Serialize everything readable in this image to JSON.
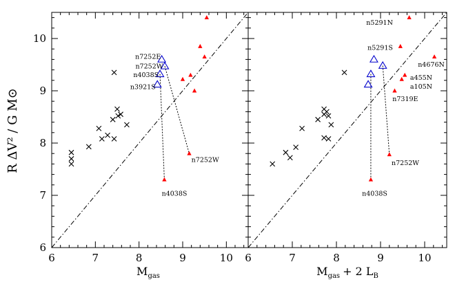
{
  "chart_data": [
    {
      "type": "scatter",
      "panel": "left",
      "title": "",
      "xlabel": "M",
      "xlabel_sub": "gas",
      "xlabel_tail": "",
      "ylabel": "R ΔV² / G M⊙",
      "xlim": [
        6,
        10.5
      ],
      "ylim": [
        6,
        10.5
      ],
      "x_ticks": [
        "6",
        "7",
        "8",
        "9",
        "10"
      ],
      "y_ticks": [
        "6",
        "7",
        "8",
        "9",
        "10"
      ],
      "diagonal": [
        [
          6,
          6
        ],
        [
          10.5,
          10.5
        ]
      ],
      "series": [
        {
          "marker": "x",
          "color": "#000000",
          "points": [
            [
              6.45,
              7.82
            ],
            [
              6.45,
              7.7
            ],
            [
              6.45,
              7.6
            ],
            [
              6.85,
              7.93
            ],
            [
              7.08,
              8.28
            ],
            [
              7.15,
              8.08
            ],
            [
              7.28,
              8.15
            ],
            [
              7.4,
              8.45
            ],
            [
              7.43,
              8.08
            ],
            [
              7.5,
              8.65
            ],
            [
              7.52,
              8.52
            ],
            [
              7.58,
              8.55
            ],
            [
              7.72,
              8.35
            ],
            [
              7.43,
              9.35
            ]
          ]
        },
        {
          "marker": "open-triangle",
          "color": "#0000cc",
          "points": [
            [
              8.52,
              9.6
            ],
            [
              8.59,
              9.47
            ],
            [
              8.48,
              9.32
            ],
            [
              8.42,
              9.12
            ]
          ]
        },
        {
          "marker": "filled-triangle",
          "color": "#ff0000",
          "points": [
            [
              9.55,
              10.4
            ],
            [
              9.4,
              9.85
            ],
            [
              9.5,
              9.65
            ],
            [
              9.18,
              9.3
            ],
            [
              9.0,
              9.22
            ],
            [
              9.27,
              9.0
            ],
            [
              9.15,
              7.8
            ],
            [
              8.58,
              7.3
            ]
          ]
        }
      ],
      "connectors": [
        [
          [
            8.59,
            9.47
          ],
          [
            9.15,
            7.8
          ]
        ],
        [
          [
            8.48,
            9.32
          ],
          [
            8.58,
            7.3
          ]
        ]
      ],
      "annotations": [
        {
          "text": "n7252E",
          "x": 8.5,
          "y": 9.65,
          "anchor": "end"
        },
        {
          "text": "n7252W",
          "x": 8.55,
          "y": 9.47,
          "anchor": "end"
        },
        {
          "text": "n4038S",
          "x": 8.45,
          "y": 9.3,
          "anchor": "end"
        },
        {
          "text": "n3921S",
          "x": 8.38,
          "y": 9.07,
          "anchor": "end"
        },
        {
          "text": "n7252W",
          "x": 9.2,
          "y": 7.68,
          "anchor": "start"
        },
        {
          "text": "n4038S",
          "x": 8.52,
          "y": 7.03,
          "anchor": "start"
        }
      ]
    },
    {
      "type": "scatter",
      "panel": "right",
      "title": "",
      "xlabel": "M",
      "xlabel_sub": "gas",
      "xlabel_tail": "+ 2 L",
      "xlabel_tail_sub": "B",
      "xlim": [
        6,
        10.5
      ],
      "ylim": [
        6,
        10.5
      ],
      "x_ticks": [
        "6",
        "7",
        "8",
        "9",
        "10"
      ],
      "diagonal": [
        [
          6,
          6
        ],
        [
          10.5,
          10.5
        ]
      ],
      "series": [
        {
          "marker": "x",
          "color": "#000000",
          "points": [
            [
              6.55,
              7.6
            ],
            [
              6.85,
              7.82
            ],
            [
              6.95,
              7.72
            ],
            [
              7.08,
              7.92
            ],
            [
              7.22,
              8.28
            ],
            [
              7.58,
              8.45
            ],
            [
              7.72,
              8.65
            ],
            [
              7.72,
              8.55
            ],
            [
              7.78,
              8.6
            ],
            [
              7.82,
              8.52
            ],
            [
              7.88,
              8.35
            ],
            [
              7.82,
              8.08
            ],
            [
              7.72,
              8.1
            ],
            [
              8.18,
              9.35
            ]
          ]
        },
        {
          "marker": "open-triangle",
          "color": "#0000cc",
          "points": [
            [
              8.85,
              9.6
            ],
            [
              9.05,
              9.48
            ],
            [
              8.78,
              9.32
            ],
            [
              8.72,
              9.12
            ]
          ]
        },
        {
          "marker": "filled-triangle",
          "color": "#ff0000",
          "points": [
            [
              9.65,
              10.4
            ],
            [
              9.45,
              9.85
            ],
            [
              10.22,
              9.65
            ],
            [
              9.55,
              9.3
            ],
            [
              9.48,
              9.22
            ],
            [
              9.32,
              9.0
            ],
            [
              9.2,
              7.78
            ],
            [
              8.78,
              7.3
            ]
          ]
        }
      ],
      "connectors": [
        [
          [
            9.05,
            9.48
          ],
          [
            9.2,
            7.78
          ]
        ],
        [
          [
            8.78,
            9.32
          ],
          [
            8.78,
            7.3
          ]
        ]
      ],
      "annotations": [
        {
          "text": "n5291N",
          "x": 9.28,
          "y": 10.3,
          "anchor": "end"
        },
        {
          "text": "n5291S",
          "x": 9.28,
          "y": 9.82,
          "anchor": "end"
        },
        {
          "text": "n4676N",
          "x": 10.45,
          "y": 9.5,
          "anchor": "end"
        },
        {
          "text": "a455N",
          "x": 9.67,
          "y": 9.25,
          "anchor": "start"
        },
        {
          "text": "a105N",
          "x": 9.67,
          "y": 9.08,
          "anchor": "start"
        },
        {
          "text": "n7319E",
          "x": 9.27,
          "y": 8.84,
          "anchor": "start"
        },
        {
          "text": "n7252W",
          "x": 9.25,
          "y": 7.62,
          "anchor": "start"
        },
        {
          "text": "n4038S",
          "x": 8.58,
          "y": 7.03,
          "anchor": "start"
        }
      ]
    }
  ]
}
